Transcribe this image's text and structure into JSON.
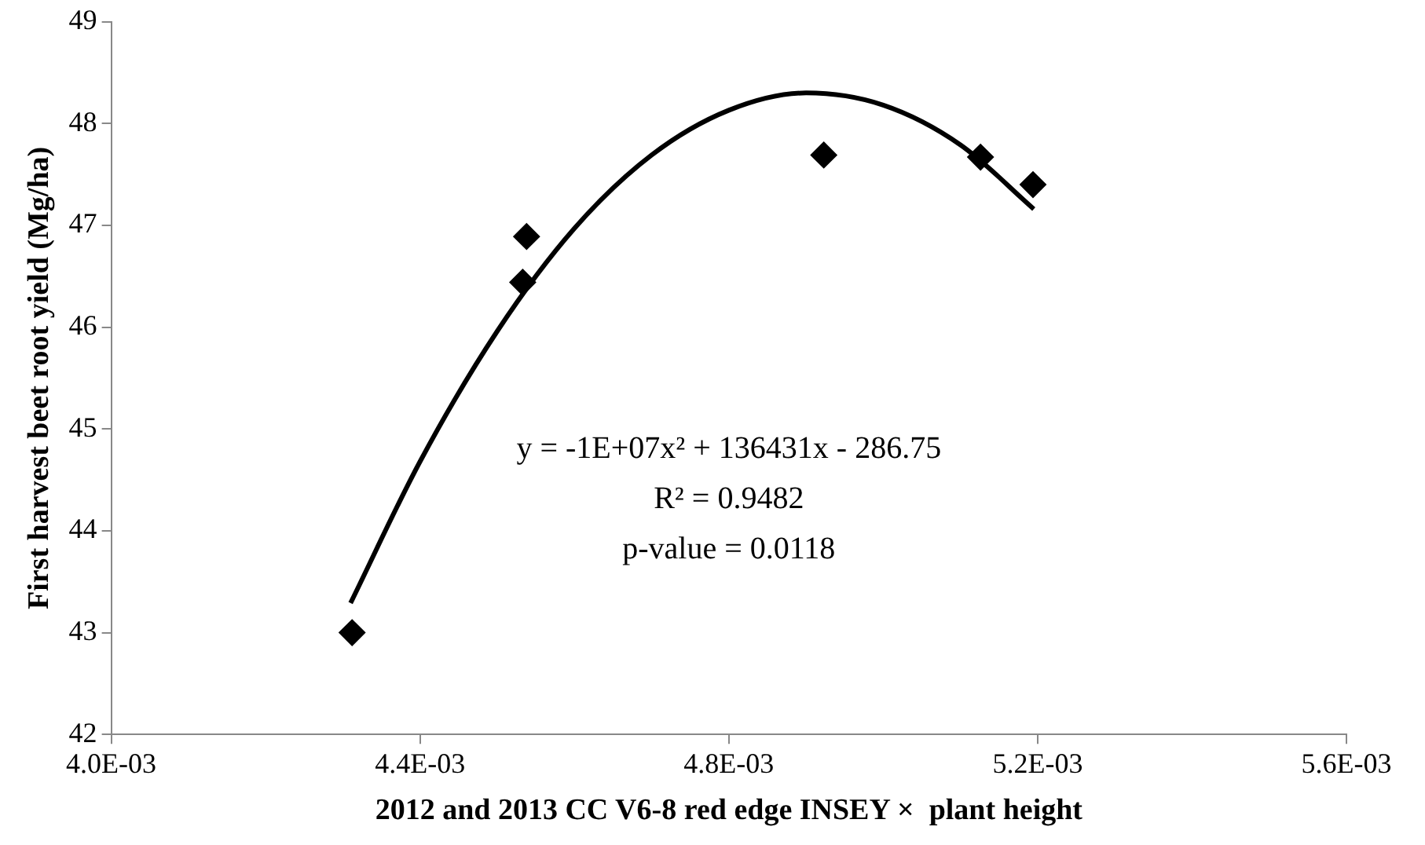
{
  "chart_data": {
    "type": "scatter",
    "xlabel": "2012 and 2013 CC V6-8 red edge INSEY ×  plant height",
    "ylabel": "First harvest beet root yield (Mg/ha)",
    "annotations": [
      "y = -1E+07x² + 136431x - 286.75",
      "R² = 0.9482",
      "p-value = 0.0118"
    ],
    "series": [
      {
        "color": "#000000",
        "marker": "diamond",
        "x": [
          0.004312,
          0.004533,
          0.004538,
          0.004923,
          0.005126,
          0.005194
        ],
        "values": [
          43.0,
          46.44,
          46.89,
          47.69,
          47.67,
          47.4
        ]
      },
      {
        "type": "line",
        "color": "#000000",
        "marker": "none",
        "line_style": "solid",
        "x": [
          0.00431,
          0.0044,
          0.0045,
          0.0046,
          0.0047,
          0.0048,
          0.0049,
          0.005,
          0.0051,
          0.005195
        ],
        "values": [
          43.29,
          44.68,
          45.96,
          46.97,
          47.69,
          48.13,
          48.3,
          48.18,
          47.79,
          47.16
        ]
      }
    ],
    "xlim": [
      0.004,
      0.0056
    ],
    "xticks": [
      {
        "value": 0.004,
        "label": "4.0E-03"
      },
      {
        "value": 0.0044,
        "label": "4.4E-03"
      },
      {
        "value": 0.0048,
        "label": "4.8E-03"
      },
      {
        "value": 0.0052,
        "label": "5.2E-03"
      },
      {
        "value": 0.0056,
        "label": "5.6E-03"
      }
    ],
    "ylim": [
      42,
      49
    ],
    "yticks": [
      42,
      43,
      44,
      45,
      46,
      47,
      48,
      49
    ],
    "grid": false,
    "legend": false
  }
}
